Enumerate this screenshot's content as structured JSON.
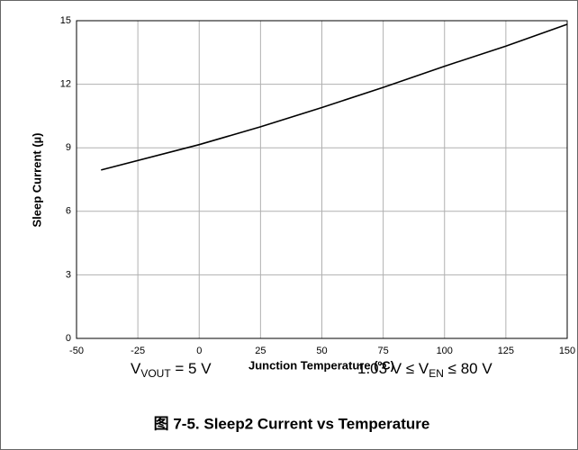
{
  "chart_data": {
    "type": "line",
    "x": [
      -40,
      0,
      25,
      50,
      75,
      100,
      125,
      150
    ],
    "values": [
      7.95,
      9.15,
      9.99,
      10.9,
      11.85,
      12.85,
      13.8,
      14.83
    ],
    "color": "#000000",
    "xlim": [
      -50,
      150
    ],
    "xticks": [
      -50,
      -25,
      0,
      25,
      50,
      75,
      100,
      125,
      150
    ],
    "ylim": [
      0,
      15
    ],
    "yticks": [
      0,
      3,
      6,
      9,
      12,
      15
    ],
    "grid": true,
    "xlabel": "Junction Temperature (ºC)",
    "ylabel": "Sleep Current (µ)",
    "annotations": [
      {
        "text": "V",
        "sub": "VOUT",
        "after": " = 5 V"
      },
      {
        "text": "1.03 V ≤ V",
        "sub": "EN",
        "after": " ≤ 80 V"
      }
    ],
    "caption": "图 7-5. Sleep2 Current vs Temperature"
  }
}
